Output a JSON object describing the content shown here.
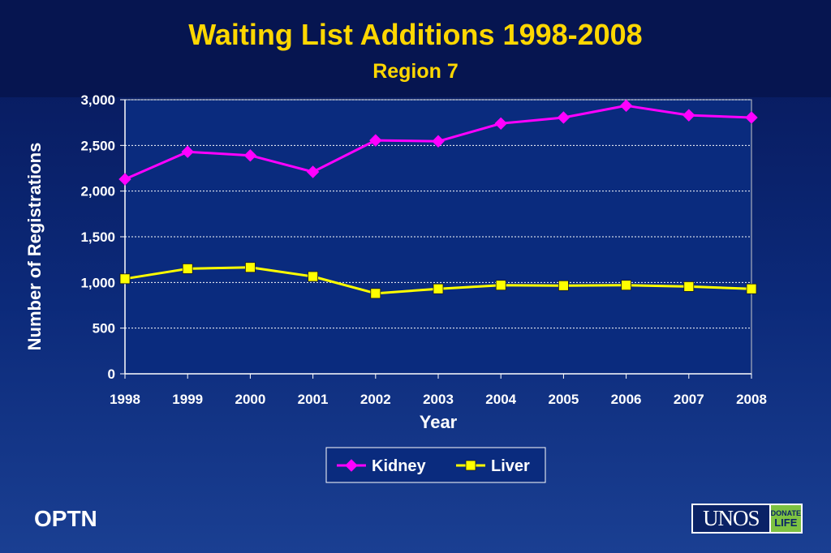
{
  "chart_data": {
    "type": "line",
    "title": "Waiting List Additions 1998-2008",
    "subtitle": "Region 7",
    "xlabel": "Year",
    "ylabel": "Number of Registrations",
    "categories": [
      "1998",
      "1999",
      "2000",
      "2001",
      "2002",
      "2003",
      "2004",
      "2005",
      "2006",
      "2007",
      "2008"
    ],
    "ylim": [
      0,
      3000
    ],
    "yticks": [
      0,
      500,
      1000,
      1500,
      2000,
      2500,
      3000
    ],
    "ytick_labels": [
      "0",
      "500",
      "1,000",
      "1,500",
      "2,000",
      "2,500",
      "3,000"
    ],
    "grid": true,
    "legend_position": "bottom",
    "series": [
      {
        "name": "Kidney",
        "color": "#ff00ff",
        "marker": "diamond",
        "values": [
          2130,
          2430,
          2390,
          2210,
          2555,
          2545,
          2740,
          2805,
          2935,
          2830,
          2805
        ]
      },
      {
        "name": "Liver",
        "color": "#ffff00",
        "marker": "square",
        "values": [
          1040,
          1150,
          1165,
          1065,
          880,
          930,
          970,
          965,
          970,
          955,
          930
        ]
      }
    ]
  },
  "footer": {
    "org": "OPTN",
    "logo_text": "UNOS",
    "logo_badge_top": "DONATE",
    "logo_badge_bottom": "LIFE"
  }
}
